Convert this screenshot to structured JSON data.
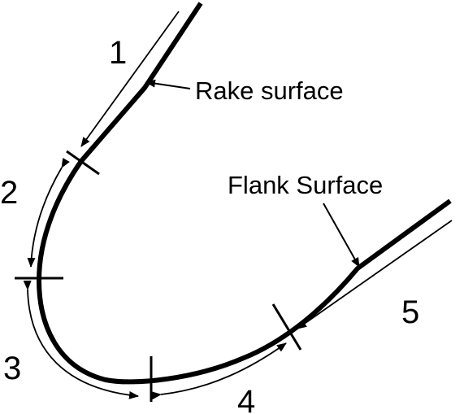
{
  "diagram": {
    "annotations": {
      "rake_surface": "Rake surface",
      "flank_surface": "Flank Surface"
    },
    "regions": [
      {
        "number": "1"
      },
      {
        "number": "2"
      },
      {
        "number": "3"
      },
      {
        "number": "4"
      },
      {
        "number": "5"
      }
    ],
    "colors": {
      "line": "#000000",
      "background": "#ffffff"
    }
  }
}
